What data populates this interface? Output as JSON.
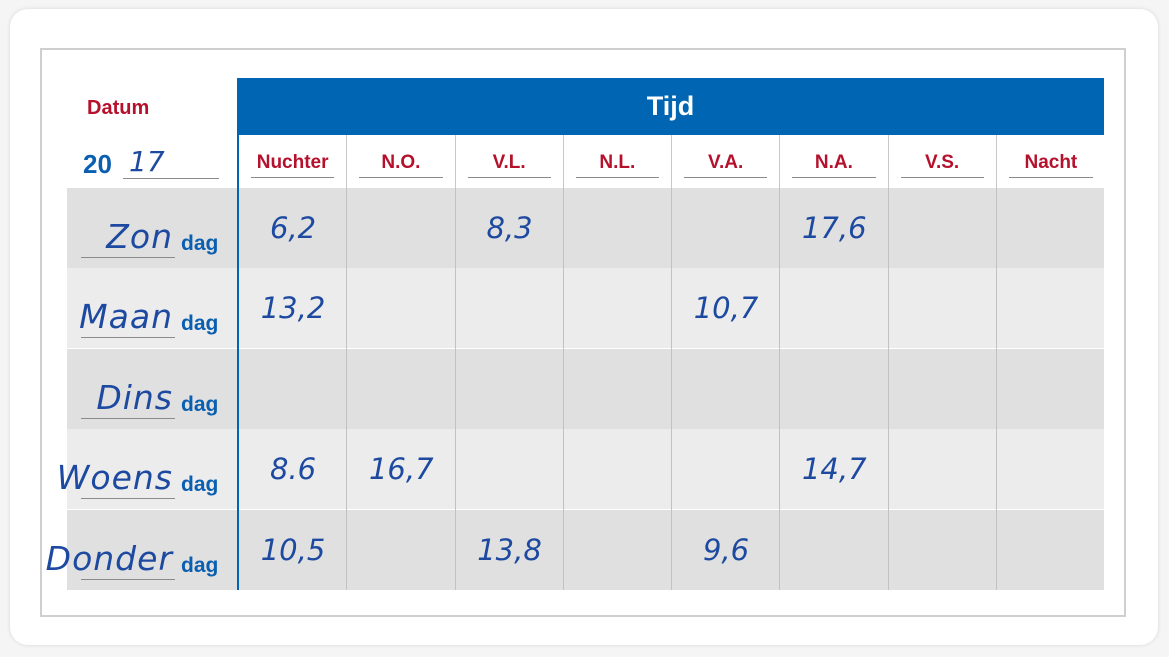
{
  "header": {
    "datum_label": "Datum",
    "year_prefix": "20",
    "year_handwritten": "17",
    "tijd_label": "Tijd"
  },
  "columns": [
    "Nuchter",
    "N.O.",
    "V.L.",
    "N.L.",
    "V.A.",
    "N.A.",
    "V.S.",
    "Nacht"
  ],
  "rows": [
    {
      "day_handwritten": "Zon",
      "suffix": "dag",
      "values": [
        "6,2",
        "",
        "8,3",
        "",
        "",
        "17,6",
        "",
        ""
      ]
    },
    {
      "day_handwritten": "Maan",
      "suffix": "dag",
      "values": [
        "13,2",
        "",
        "",
        "",
        "10,7",
        "",
        "",
        ""
      ]
    },
    {
      "day_handwritten": "Dins",
      "suffix": "dag",
      "values": [
        "",
        "",
        "",
        "",
        "",
        "",
        "",
        ""
      ]
    },
    {
      "day_handwritten": "Woens",
      "suffix": "dag",
      "values": [
        "8.6",
        "16,7",
        "",
        "",
        "",
        "14,7",
        "",
        ""
      ]
    },
    {
      "day_handwritten": "Donder",
      "suffix": "dag",
      "values": [
        "10,5",
        "",
        "13,8",
        "",
        "9,6",
        "",
        "",
        ""
      ]
    }
  ],
  "colors": {
    "accent_blue": "#0066b3",
    "label_red": "#b5102c",
    "handwriting_blue": "#1d4aa0"
  }
}
